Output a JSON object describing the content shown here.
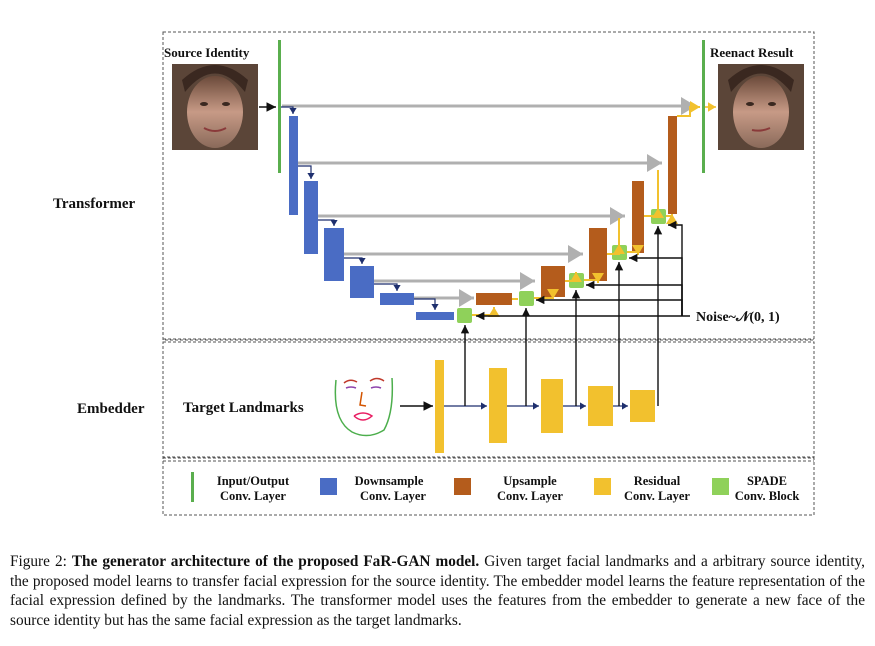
{
  "labels": {
    "source_identity": "Source Identity",
    "reenact_result": "Reenact Result",
    "transformer": "Transformer",
    "embedder": "Embedder",
    "target_landmarks": "Target Landmarks",
    "noise": "Noise~𝒩(0, 1)"
  },
  "legend": [
    {
      "line1": "Input/Output",
      "line2": "Conv. Layer",
      "color": "#5aae4e",
      "shape": "bar"
    },
    {
      "line1": "Downsample",
      "line2": "Conv. Layer",
      "color": "#4a6cc4",
      "shape": "square"
    },
    {
      "line1": "Upsample",
      "line2": "Conv. Layer",
      "color": "#b45c1c",
      "shape": "square"
    },
    {
      "line1": "Residual",
      "line2": "Conv. Layer",
      "color": "#f2c12e",
      "shape": "square"
    },
    {
      "line1": "SPADE",
      "line2": "Conv. Block",
      "color": "#8fd15a",
      "shape": "square"
    }
  ],
  "caption": {
    "prefix": "Figure 2: ",
    "bold": "The generator architecture of the proposed FaR-GAN model.",
    "text": " Given target facial landmarks and a arbitrary source identity, the proposed model learns to transfer facial expression for the source identity. The embedder model learns the feature representation of the facial expression defined by the landmarks. The transformer model uses the features from the embedder to generate a new face of the source identity but has the same facial expression as the target landmarks."
  },
  "colors": {
    "io": "#5aae4e",
    "downsample": "#4a6cc4",
    "upsample": "#b45c1c",
    "residual": "#f2c12e",
    "spade": "#8fd15a",
    "skip": "#b0b0b0"
  }
}
